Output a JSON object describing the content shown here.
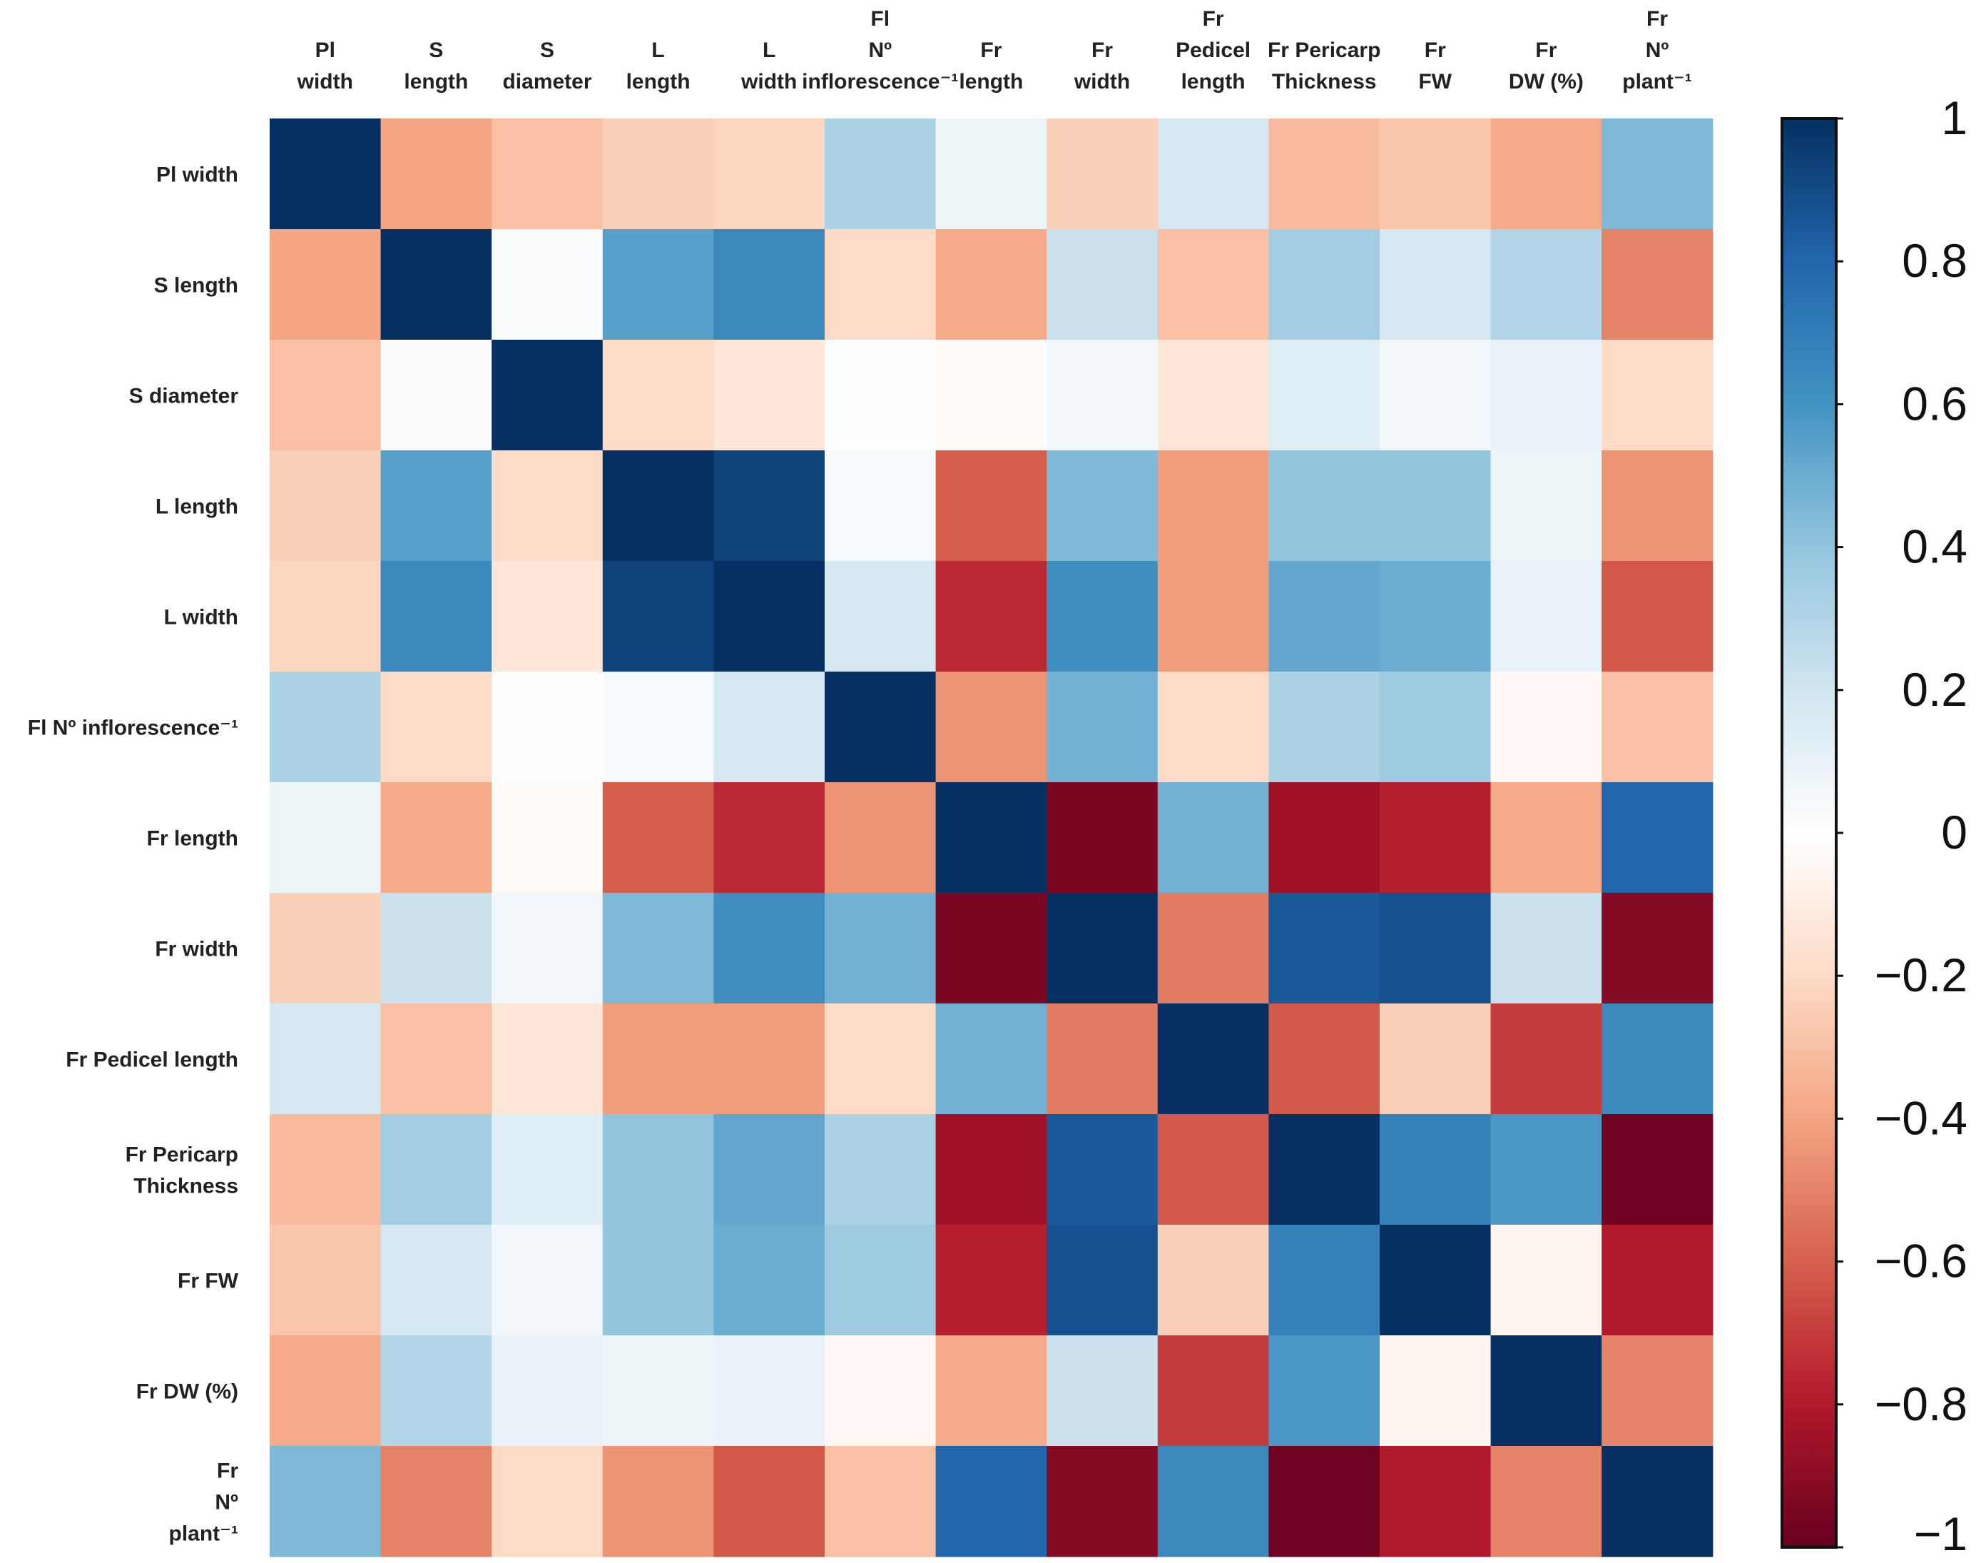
{
  "chart_data": {
    "type": "heatmap",
    "columns": [
      [
        "Pl",
        "width"
      ],
      [
        "S",
        "length"
      ],
      [
        "S",
        "diameter"
      ],
      [
        "L",
        "length"
      ],
      [
        "L",
        "width"
      ],
      [
        "Fl",
        "Nº",
        "inflorescence⁻¹"
      ],
      [
        "Fr",
        "length"
      ],
      [
        "Fr",
        "width"
      ],
      [
        "Fr",
        "Pedicel",
        "length"
      ],
      [
        "Fr Pericarp",
        "Thickness"
      ],
      [
        "Fr",
        "FW"
      ],
      [
        "Fr",
        "DW (%)"
      ],
      [
        "Fr",
        "Nº",
        "plant⁻¹"
      ]
    ],
    "rows": [
      [
        "Pl width"
      ],
      [
        "S length"
      ],
      [
        "S diameter"
      ],
      [
        "L length"
      ],
      [
        "L width"
      ],
      [
        "Fl Nº inflorescence⁻¹"
      ],
      [
        "Fr length"
      ],
      [
        "Fr width"
      ],
      [
        "Fr Pedicel length"
      ],
      [
        "Fr  Pericarp",
        "Thickness"
      ],
      [
        "Fr FW"
      ],
      [
        "Fr DW (%)"
      ],
      [
        "Fr",
        "Nº",
        "plant⁻¹"
      ]
    ],
    "values": [
      [
        1.0,
        -0.4,
        -0.3,
        -0.24,
        -0.22,
        0.32,
        0.08,
        -0.24,
        0.18,
        -0.32,
        -0.28,
        -0.38,
        0.45
      ],
      [
        -0.4,
        1.0,
        0.02,
        0.55,
        0.65,
        -0.2,
        -0.38,
        0.22,
        -0.3,
        0.35,
        0.18,
        0.3,
        -0.5
      ],
      [
        -0.3,
        0.02,
        1.0,
        -0.2,
        -0.14,
        0.01,
        -0.02,
        0.06,
        -0.14,
        0.14,
        0.06,
        0.1,
        -0.2
      ],
      [
        -0.24,
        0.55,
        -0.2,
        1.0,
        0.93,
        0.04,
        -0.6,
        0.45,
        -0.42,
        0.4,
        0.4,
        0.08,
        -0.45
      ],
      [
        -0.22,
        0.65,
        -0.14,
        0.93,
        1.0,
        0.18,
        -0.75,
        0.62,
        -0.42,
        0.52,
        0.5,
        0.1,
        -0.62
      ],
      [
        0.32,
        -0.2,
        0.01,
        0.04,
        0.18,
        1.0,
        -0.45,
        0.48,
        -0.2,
        0.32,
        0.36,
        -0.04,
        -0.3
      ],
      [
        0.08,
        -0.38,
        -0.02,
        -0.6,
        -0.75,
        -0.45,
        1.0,
        -0.95,
        0.48,
        -0.85,
        -0.78,
        -0.38,
        0.8
      ],
      [
        -0.24,
        0.22,
        0.06,
        0.45,
        0.62,
        0.48,
        -0.95,
        1.0,
        -0.52,
        0.85,
        0.88,
        0.22,
        -0.92
      ],
      [
        0.18,
        -0.3,
        -0.14,
        -0.42,
        -0.42,
        -0.2,
        0.48,
        -0.52,
        1.0,
        -0.62,
        -0.24,
        -0.7,
        0.65
      ],
      [
        -0.32,
        0.35,
        0.14,
        0.4,
        0.52,
        0.32,
        -0.85,
        0.85,
        -0.62,
        1.0,
        0.68,
        0.58,
        -0.98
      ],
      [
        -0.28,
        0.18,
        0.06,
        0.4,
        0.5,
        0.36,
        -0.78,
        0.88,
        -0.24,
        0.68,
        1.0,
        -0.05,
        -0.8
      ],
      [
        -0.38,
        0.3,
        0.1,
        0.08,
        0.1,
        -0.04,
        -0.38,
        0.22,
        -0.7,
        0.58,
        -0.05,
        1.0,
        -0.5
      ],
      [
        0.45,
        -0.5,
        -0.2,
        -0.45,
        -0.62,
        -0.3,
        0.8,
        -0.92,
        0.65,
        -0.98,
        -0.8,
        -0.5,
        1.0
      ]
    ],
    "colorbar": {
      "min": -1,
      "max": 1,
      "ticks": [
        1,
        0.8,
        0.6,
        0.4,
        0.2,
        0,
        -0.2,
        -0.4,
        -0.6,
        -0.8,
        -1
      ],
      "tick_labels": [
        "1",
        "0.8",
        "0.6",
        "0.4",
        "0.2",
        "0",
        "−0.2",
        "−0.4",
        "−0.6",
        "−0.8",
        "−1"
      ],
      "palette": [
        "#67001f",
        "#b2182b",
        "#d6604d",
        "#f4a582",
        "#fddbc7",
        "#ffffff",
        "#d1e5f0",
        "#92c5de",
        "#4393c3",
        "#2166ac",
        "#053061"
      ]
    }
  }
}
